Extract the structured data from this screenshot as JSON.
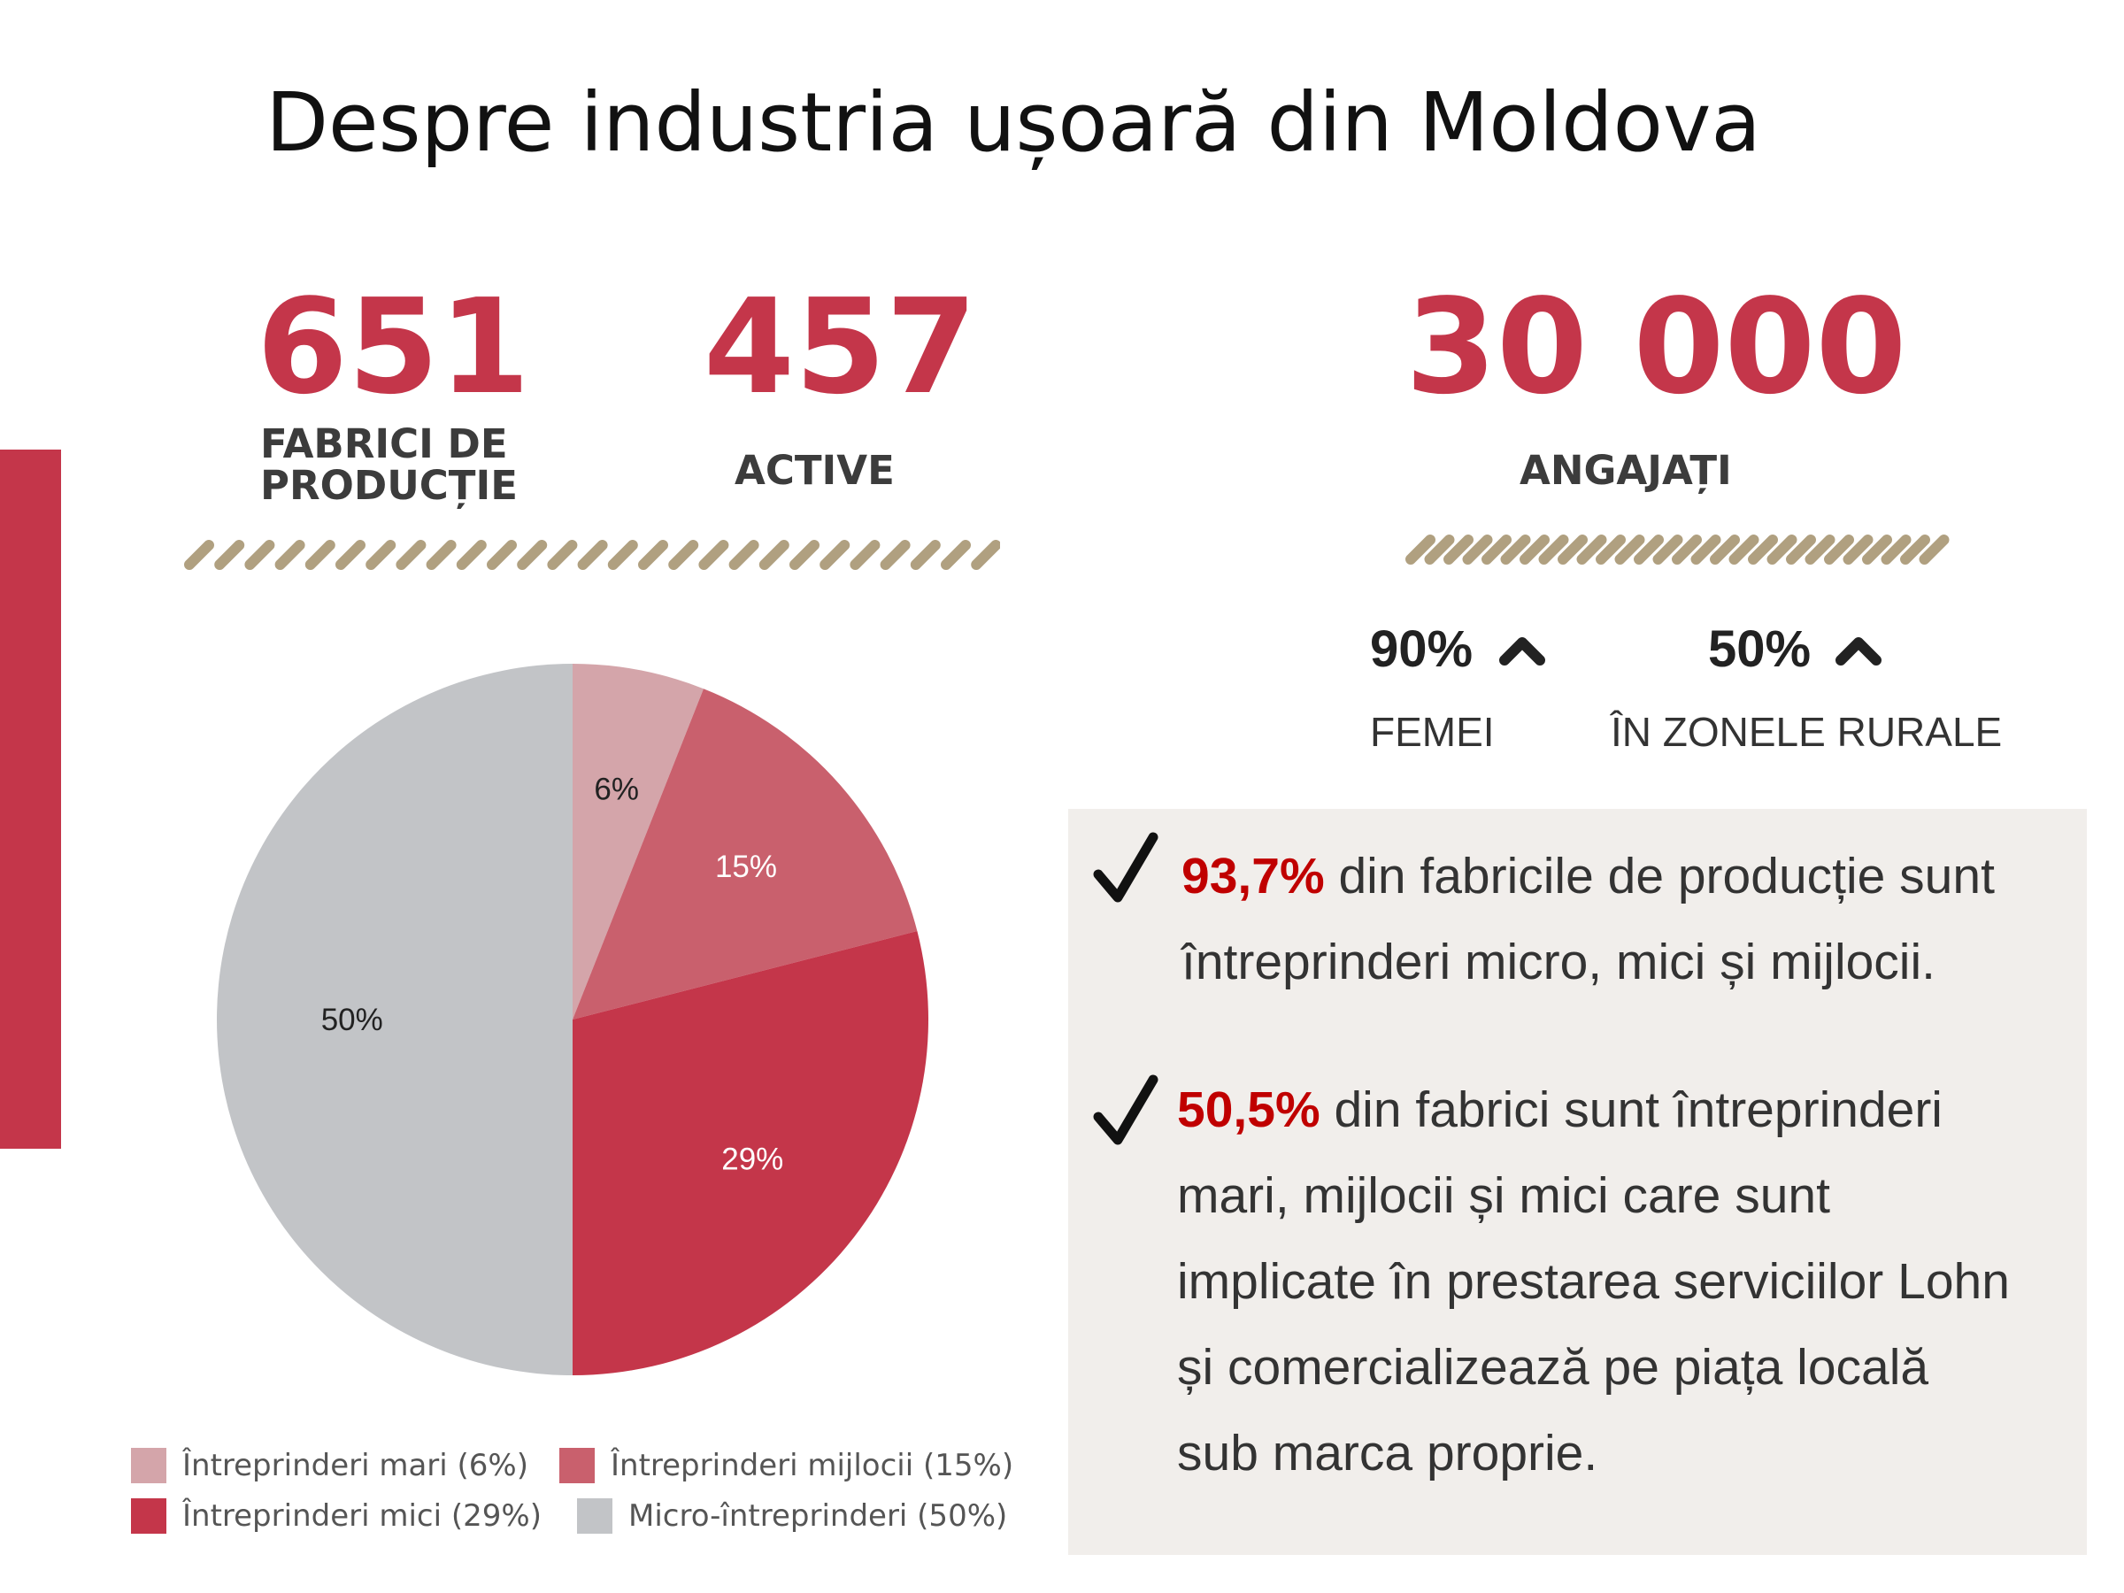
{
  "title": "Despre industria ușoară din Moldova",
  "stats": {
    "factories": {
      "value": "651",
      "label_line1": "FABRICI DE",
      "label_line2": "PRODUCȚIE"
    },
    "active": {
      "value": "457",
      "label": "ACTIVE"
    },
    "employees": {
      "value": "30 000",
      "label": "ANGAJAȚI"
    }
  },
  "employee_breakdown": [
    {
      "percent": "90%",
      "label": "FEMEI",
      "trend_icon": "caret-up-icon"
    },
    {
      "percent": "50%",
      "label": "ÎN ZONELE RURALE",
      "trend_icon": "caret-up-icon"
    }
  ],
  "facts": [
    {
      "highlight": "93,7%",
      "lines": [
        "din fabricile de producție sunt",
        "întreprinderi micro, mici și mijlocii."
      ]
    },
    {
      "highlight": "50,5%",
      "lines": [
        "din fabrici sunt întreprinderi",
        "mari, mijlocii și mici care sunt",
        "implicate în prestarea serviciilor Lohn",
        "și comercializează pe piața locală",
        "sub marca proprie."
      ]
    }
  ],
  "colors": {
    "accent": "#c4364a",
    "hatch": "#b0a080",
    "panel": "#f1eeeb",
    "highlight_text": "#c00000"
  },
  "chart_data": {
    "type": "pie",
    "title": "",
    "slices": [
      {
        "name": "Întreprinderi mari (6%)",
        "value": 6,
        "label": "6%",
        "color": "#d4a5aa",
        "label_color": "#222222"
      },
      {
        "name": "Întreprinderi mijlocii (15%)",
        "value": 15,
        "label": "15%",
        "color": "#c9606d",
        "label_color": "#ffffff"
      },
      {
        "name": "Întreprinderi mici (29%)",
        "value": 29,
        "label": "29%",
        "color": "#c4364a",
        "label_color": "#ffffff"
      },
      {
        "name": "Micro-întreprinderi (50%)",
        "value": 50,
        "label": "50%",
        "color": "#c2c4c7",
        "label_color": "#222222"
      }
    ],
    "start_angle": "12 o'clock",
    "direction": "clockwise",
    "legend_position": "bottom"
  }
}
